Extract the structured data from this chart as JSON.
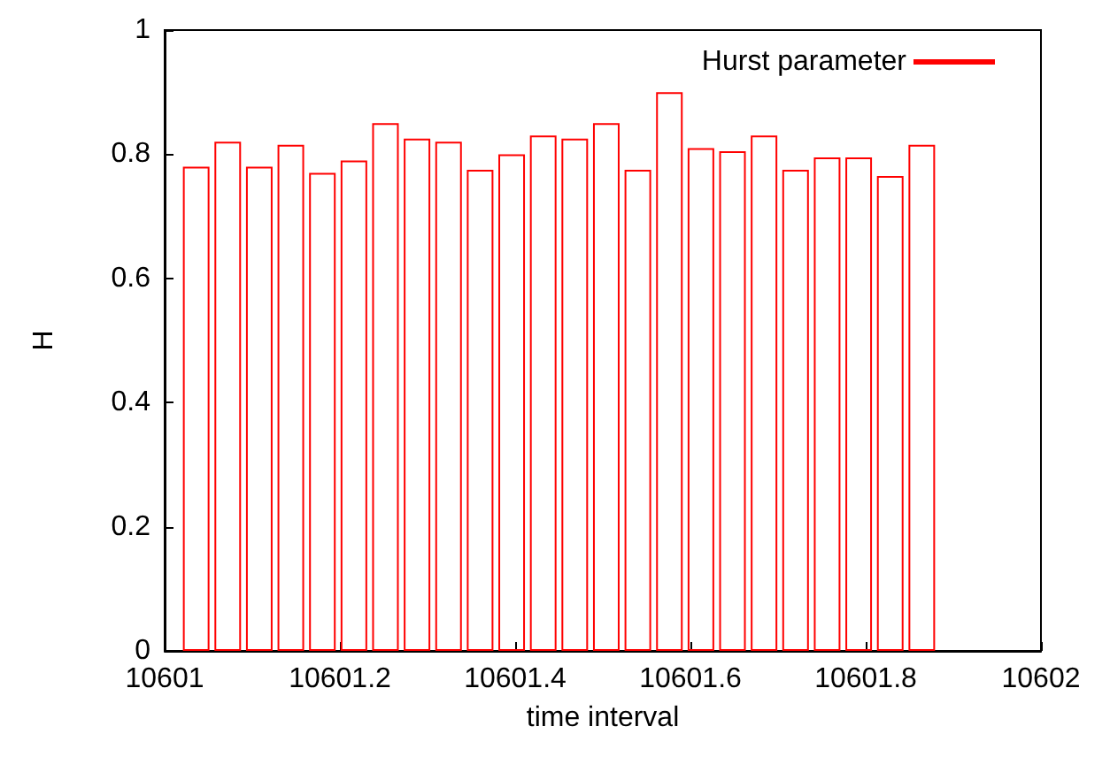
{
  "chart_data": {
    "type": "bar",
    "xlabel": "time interval",
    "ylabel": "H",
    "x": [
      10601.036,
      10601.072,
      10601.108,
      10601.144,
      10601.18,
      10601.216,
      10601.252,
      10601.288,
      10601.324,
      10601.36,
      10601.396,
      10601.432,
      10601.468,
      10601.504,
      10601.54,
      10601.576,
      10601.612,
      10601.648,
      10601.684,
      10601.72,
      10601.756,
      10601.792,
      10601.828,
      10601.864
    ],
    "series": [
      {
        "name": "Hurst parameter",
        "color": "#ff0000",
        "values": [
          0.78,
          0.82,
          0.78,
          0.815,
          0.77,
          0.79,
          0.85,
          0.825,
          0.82,
          0.775,
          0.8,
          0.83,
          0.825,
          0.85,
          0.775,
          0.9,
          0.81,
          0.805,
          0.83,
          0.775,
          0.795,
          0.795,
          0.765,
          0.815
        ]
      }
    ],
    "xlim": [
      10601,
      10602
    ],
    "xticks": [
      10601,
      10601.2,
      10601.4,
      10601.6,
      10601.8,
      10602
    ],
    "ylim": [
      0,
      1
    ],
    "yticks": [
      0,
      0.2,
      0.4,
      0.6,
      0.8,
      1
    ],
    "grid": false,
    "legend": "top right"
  }
}
